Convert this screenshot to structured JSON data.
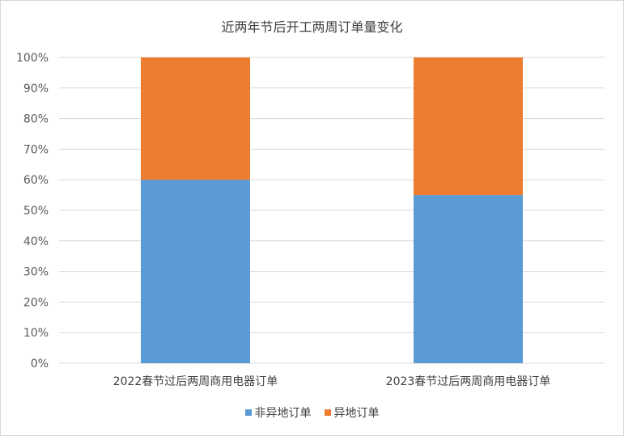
{
  "chart_data": {
    "type": "bar",
    "stacked": true,
    "title": "近两年节后开工两周订单量变化",
    "categories": [
      "2022春节过后两周商用电器订单",
      "2023春节过后两周商用电器订单"
    ],
    "series": [
      {
        "name": "非异地订单",
        "color": "#5b9bd5",
        "values": [
          60,
          55
        ]
      },
      {
        "name": "异地订单",
        "color": "#ed7d31",
        "values": [
          40,
          45
        ]
      }
    ],
    "ylim": [
      0,
      100
    ],
    "yticks": [
      "0%",
      "10%",
      "20%",
      "30%",
      "40%",
      "50%",
      "60%",
      "70%",
      "80%",
      "90%",
      "100%"
    ],
    "grid": true,
    "legend_position": "bottom"
  }
}
